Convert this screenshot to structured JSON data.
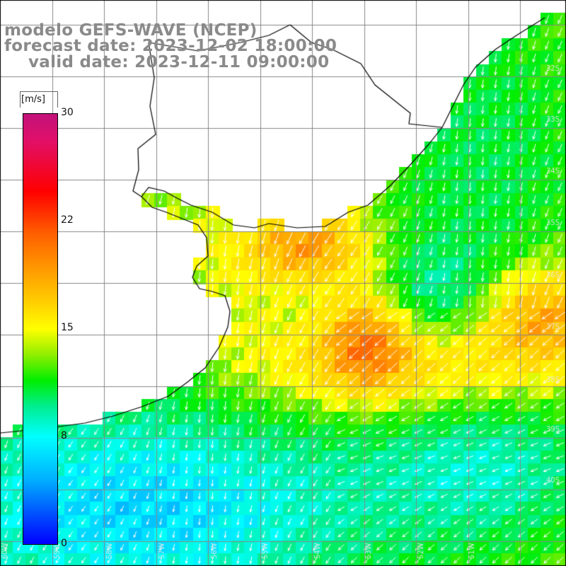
{
  "title": {
    "line1": "modelo GEFS-WAVE (NCEP)",
    "line2": "forecast date: 2023-12-02 18:00:00",
    "line3": "valid date: 2023-12-11 09:00:00"
  },
  "colorbar": {
    "unit": "[m/s]",
    "ticks": [
      "30",
      "22",
      "15",
      "8",
      "0"
    ],
    "min": 0,
    "max": 30,
    "colors": [
      "#0000ff",
      "#00b0ff",
      "#00ffff",
      "#00ee00",
      "#ffff00",
      "#ff9900",
      "#ff0000",
      "#c2127a"
    ]
  },
  "map": {
    "field": "wind speed with direction arrows",
    "lat_labels": [
      "32S",
      "33S",
      "34S",
      "35S",
      "36S",
      "37S",
      "38S",
      "39S",
      "40S"
    ],
    "lon_labels": [
      "60W",
      "59W",
      "58W",
      "57W",
      "56W",
      "55W",
      "54W",
      "53W",
      "52W",
      "51W"
    ],
    "coastline_color": "#000000",
    "grid_color": "#888888"
  }
}
